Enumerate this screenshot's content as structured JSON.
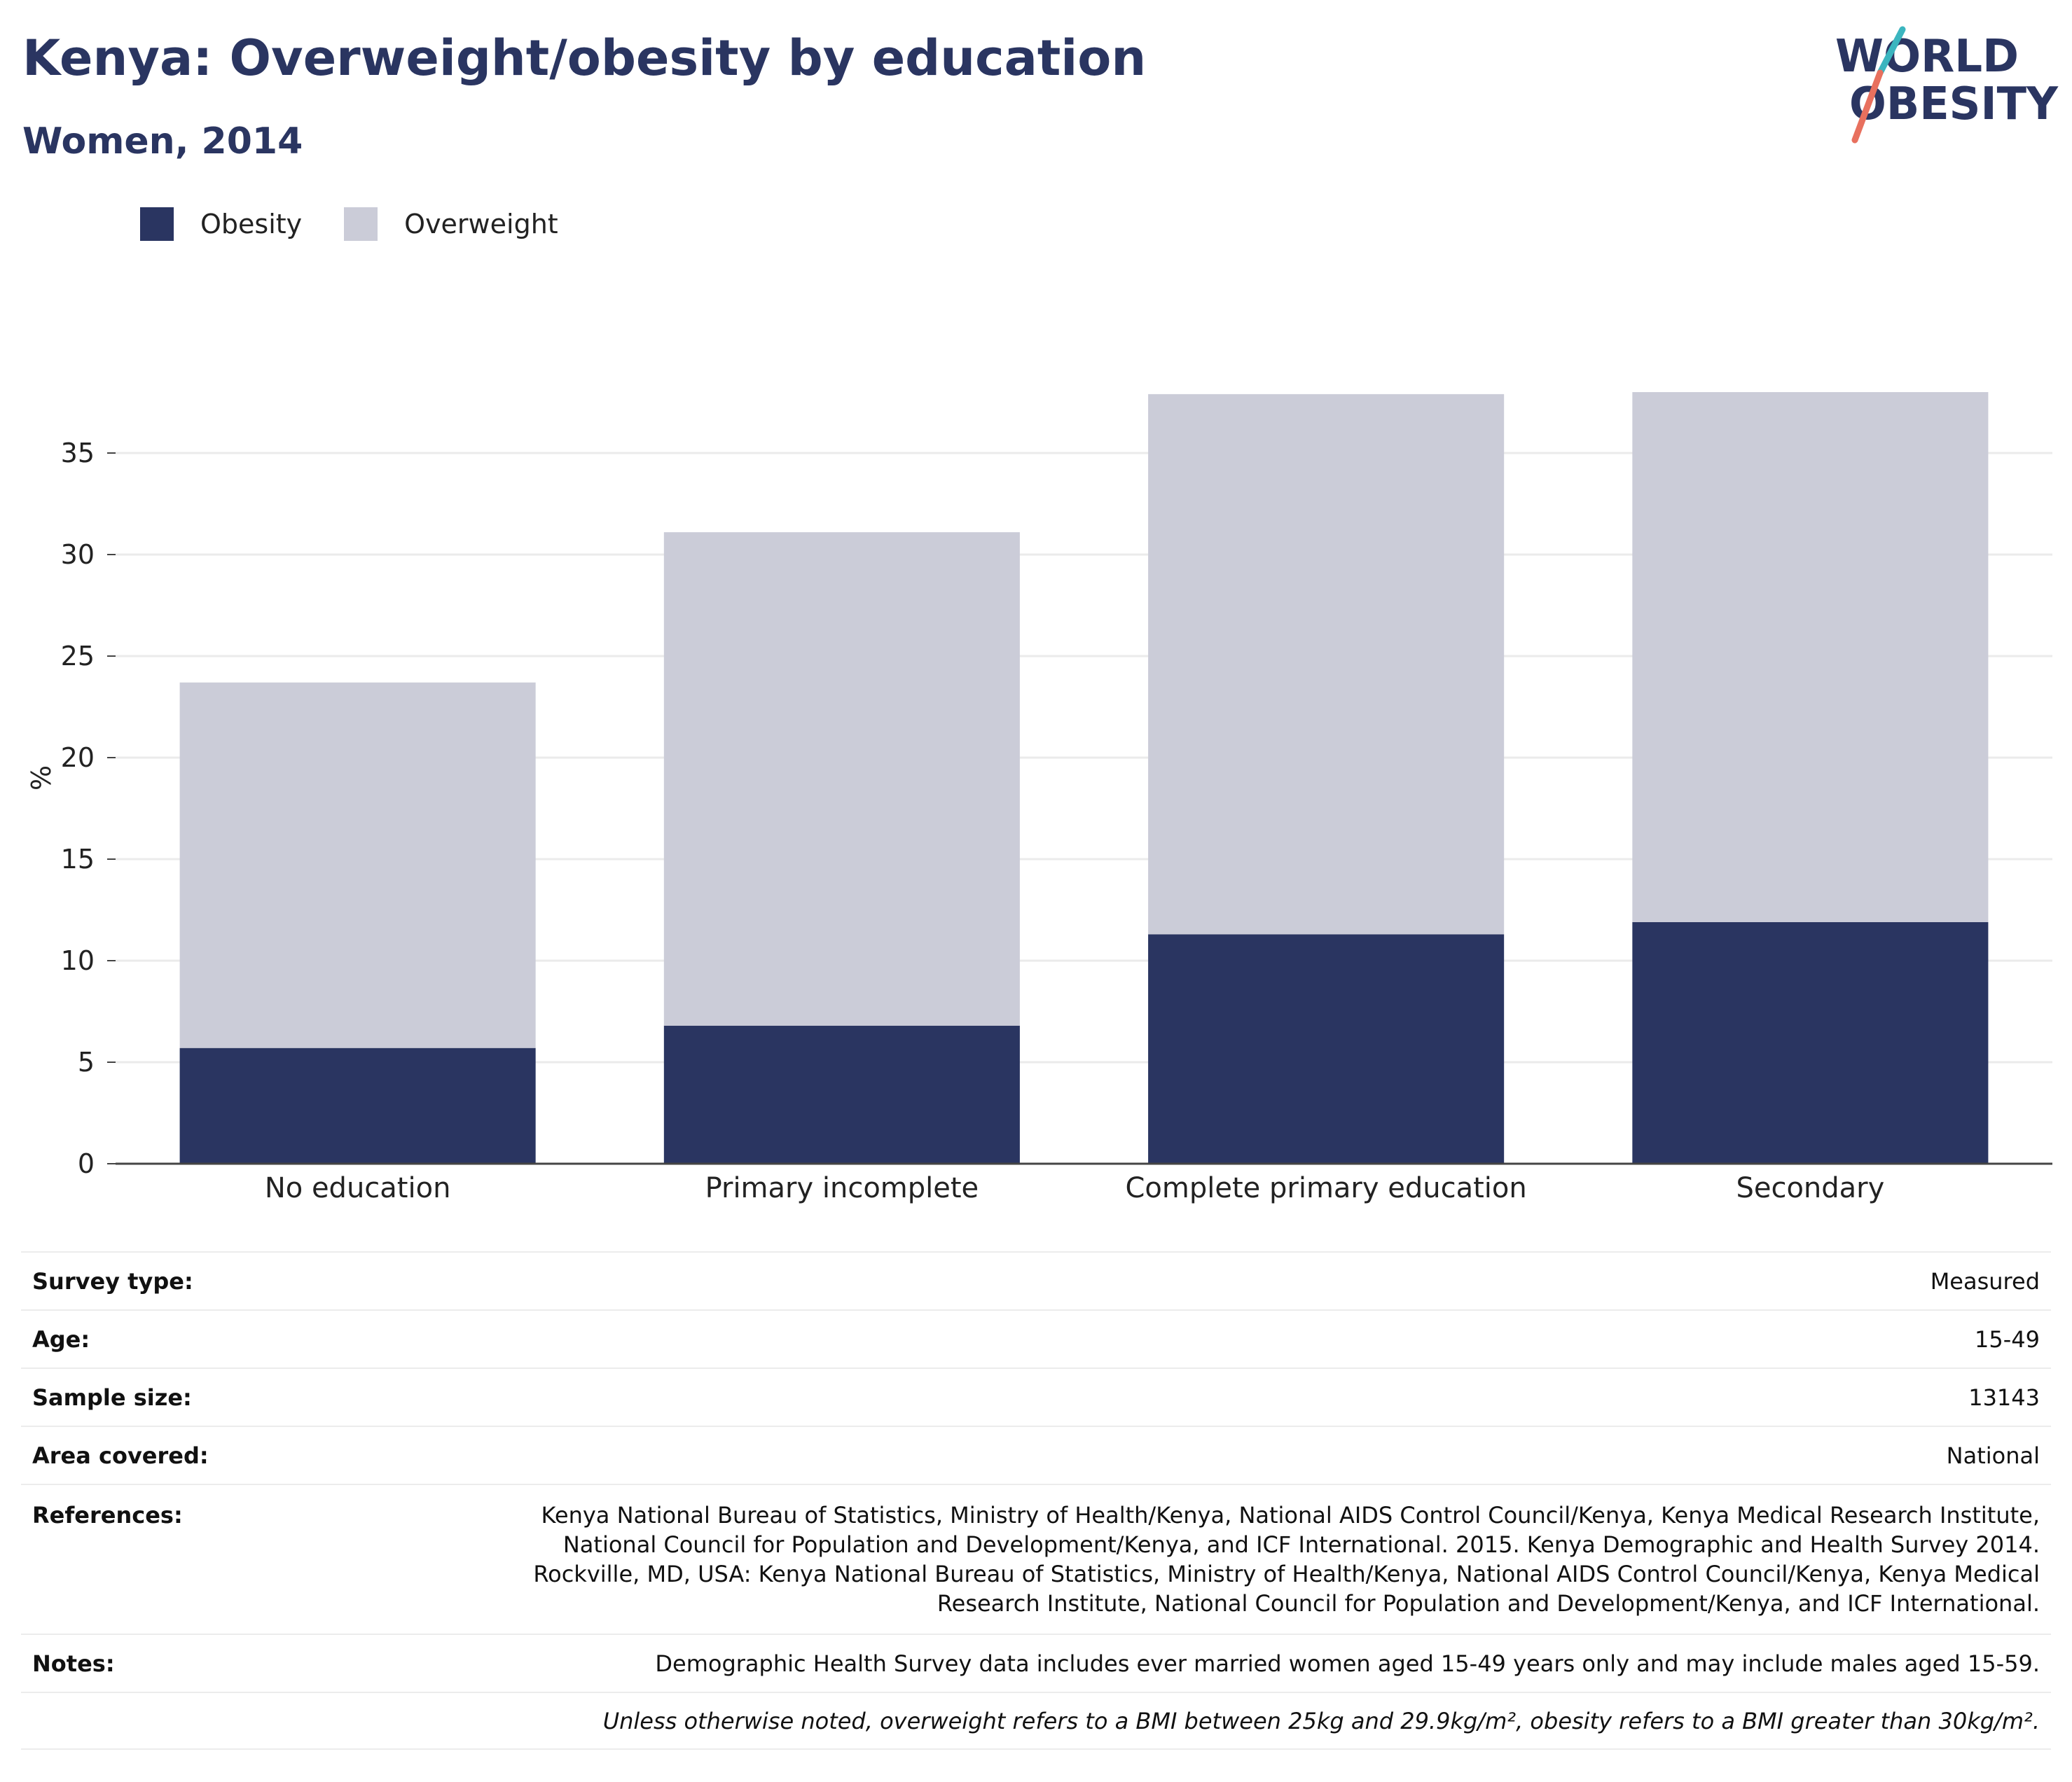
{
  "header": {
    "title": "Kenya: Overweight/obesity by education",
    "subtitle": "Women, 2014"
  },
  "logo": {
    "line1": "WORLD",
    "line2": "OBESITY"
  },
  "legend": [
    {
      "label": "Obesity",
      "color": "#2a3561"
    },
    {
      "label": "Overweight",
      "color": "#cbccd8"
    }
  ],
  "chart_data": {
    "type": "bar",
    "stacked": true,
    "categories": [
      "No education",
      "Primary incomplete",
      "Complete primary education",
      "Secondary"
    ],
    "series": [
      {
        "name": "Obesity",
        "color": "#2a3561",
        "values": [
          5.7,
          6.8,
          11.3,
          11.9
        ]
      },
      {
        "name": "Overweight",
        "color": "#cbccd8",
        "values": [
          18.0,
          24.3,
          26.6,
          26.1
        ]
      }
    ],
    "ylabel": "%",
    "ylim": [
      0,
      38
    ],
    "yticks": [
      0,
      5,
      10,
      15,
      20,
      25,
      30,
      35
    ],
    "grid": true,
    "legend_position": "top-left"
  },
  "info": {
    "rows": [
      {
        "label": "Survey type:",
        "value": "Measured"
      },
      {
        "label": "Age:",
        "value": "15-49"
      },
      {
        "label": "Sample size:",
        "value": "13143"
      },
      {
        "label": "Area covered:",
        "value": "National"
      }
    ],
    "references_label": "References:",
    "references_lines": [
      "Kenya National Bureau of Statistics, Ministry of Health/Kenya, National AIDS Control Council/Kenya, Kenya Medical Research Institute,",
      "National Council for Population and Development/Kenya, and ICF International. 2015. Kenya Demographic and Health Survey 2014.",
      "Rockville, MD, USA: Kenya National Bureau of Statistics, Ministry of Health/Kenya, National AIDS Control Council/Kenya, Kenya Medical",
      "Research Institute, National Council for Population and Development/Kenya, and ICF International."
    ],
    "notes_label": "Notes:",
    "notes_value": "Demographic Health Survey data includes ever married women aged 15-49 years only and may include males aged 15-59.",
    "footnote": "Unless otherwise noted, overweight refers to a BMI between 25kg and 29.9kg/m², obesity refers to a BMI greater than 30kg/m²."
  }
}
